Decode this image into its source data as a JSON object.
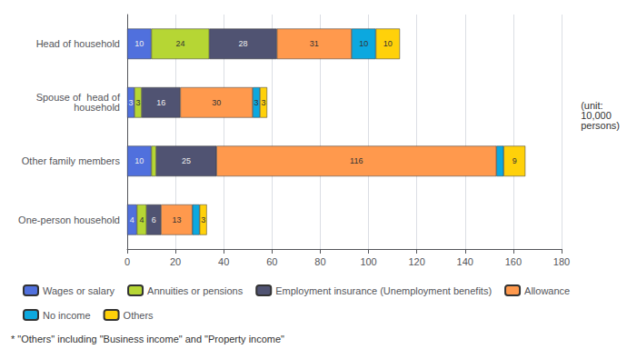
{
  "chart_data": {
    "type": "bar",
    "orientation": "horizontal",
    "stacked": true,
    "categories": [
      "Head of household",
      "Spouse of  head of\nhousehold",
      "Other family members",
      "One-person household"
    ],
    "series": [
      {
        "name": "Wages or salary",
        "values": [
          10,
          3,
          10,
          4
        ],
        "data_labels": [
          true,
          true,
          true,
          true
        ]
      },
      {
        "name": "Annuities or pensions",
        "values": [
          24,
          3,
          2,
          4
        ],
        "data_labels": [
          true,
          true,
          false,
          true
        ]
      },
      {
        "name": "Employment insurance (Unemployment benefits)",
        "values": [
          28,
          16,
          25,
          6
        ],
        "data_labels": [
          true,
          true,
          true,
          true
        ]
      },
      {
        "name": "Allowance",
        "values": [
          31,
          30,
          116,
          13
        ],
        "data_labels": [
          true,
          true,
          true,
          true
        ]
      },
      {
        "name": "No income",
        "values": [
          10,
          3,
          3,
          3
        ],
        "data_labels": [
          true,
          true,
          false,
          false
        ]
      },
      {
        "name": "Others",
        "values": [
          10,
          3,
          9,
          3
        ],
        "data_labels": [
          true,
          true,
          true,
          true
        ]
      }
    ],
    "xlim": [
      0,
      180
    ],
    "xticks": [
      0,
      20,
      40,
      60,
      80,
      100,
      120,
      140,
      160,
      180
    ],
    "grid": true,
    "legend": "bottom",
    "annotations": [
      "(unit:\n10,000\npersons)",
      "* \"Others\" including \"Business income\" and \"Property income\""
    ]
  }
}
